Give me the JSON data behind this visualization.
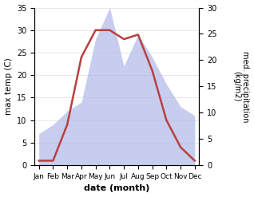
{
  "months": [
    "Jan",
    "Feb",
    "Mar",
    "Apr",
    "May",
    "Jun",
    "Jul",
    "Aug",
    "Sep",
    "Oct",
    "Nov",
    "Dec"
  ],
  "temperature": [
    1,
    1,
    9,
    24,
    30,
    30,
    28,
    29,
    21,
    10,
    4,
    1
  ],
  "precipitation": [
    7,
    9,
    12,
    14,
    28,
    35,
    22,
    29,
    24,
    18,
    13,
    11
  ],
  "temp_color": "#b94040",
  "precip_fill_color": "#b0b8e8",
  "precip_fill_alpha": 0.7,
  "temp_ylim": [
    0,
    35
  ],
  "precip_ylim": [
    0,
    30
  ],
  "temp_yticks": [
    0,
    5,
    10,
    15,
    20,
    25,
    30,
    35
  ],
  "precip_yticks": [
    0,
    5,
    10,
    15,
    20,
    25,
    30
  ],
  "xlabel": "date (month)",
  "ylabel_left": "max temp (C)",
  "ylabel_right": "med. precipitation\n(kg/m2)",
  "background_color": "#ffffff",
  "line_width": 1.8,
  "grid_color": "#dddddd"
}
